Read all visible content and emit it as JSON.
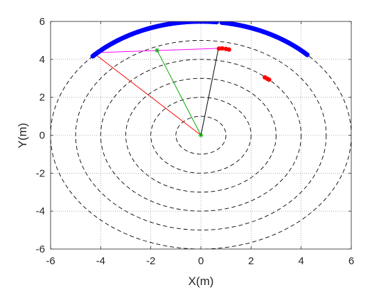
{
  "chart_data": {
    "type": "scatter",
    "title": "",
    "xlabel": "X(m)",
    "ylabel": "Y(m)",
    "xlim": [
      -6,
      6
    ],
    "ylim": [
      -6,
      6
    ],
    "xticks": [
      "-6",
      "-4",
      "-2",
      "0",
      "2",
      "4",
      "6"
    ],
    "yticks": [
      "-6",
      "-4",
      "-2",
      "0",
      "2",
      "4",
      "6"
    ],
    "grid": true,
    "grid_style": "dotted",
    "colors": {
      "arc_points": "#0000ff",
      "red_points": "#ff0000",
      "range_rings": "#000000",
      "line_red": "#ff0000",
      "line_green": "#00aa00",
      "line_black": "#000000",
      "line_magenta": "#ff00ff"
    },
    "range_rings": [
      1,
      2,
      3,
      4,
      5,
      6
    ],
    "blue_arc_segments": [
      {
        "radius": 6,
        "from_deg": 45,
        "to_deg": 82
      },
      {
        "radius": 6,
        "from_deg": 84,
        "to_deg": 136
      }
    ],
    "red_point_clusters": [
      {
        "points": [
          [
            0.72,
            4.57
          ],
          [
            0.85,
            4.58
          ],
          [
            1.0,
            4.55
          ],
          [
            1.12,
            4.52
          ]
        ]
      },
      {
        "points": [
          [
            2.55,
            3.05
          ],
          [
            2.65,
            2.98
          ],
          [
            2.72,
            2.93
          ]
        ]
      }
    ],
    "segments": [
      {
        "color": "red",
        "from": [
          0,
          0
        ],
        "to": [
          -4.3,
          4.35
        ]
      },
      {
        "color": "green",
        "from": [
          0,
          0
        ],
        "to": [
          -1.75,
          4.48
        ]
      },
      {
        "color": "black",
        "from": [
          0,
          0
        ],
        "to": [
          0.7,
          4.58
        ]
      },
      {
        "color": "magenta",
        "from": [
          -4.3,
          4.35
        ],
        "to": [
          0.7,
          4.58
        ]
      }
    ],
    "markers": [
      {
        "shape": "star",
        "color": "green",
        "at": [
          -1.75,
          4.48
        ]
      },
      {
        "shape": "star",
        "color": "green",
        "at": [
          0,
          0
        ]
      }
    ]
  }
}
